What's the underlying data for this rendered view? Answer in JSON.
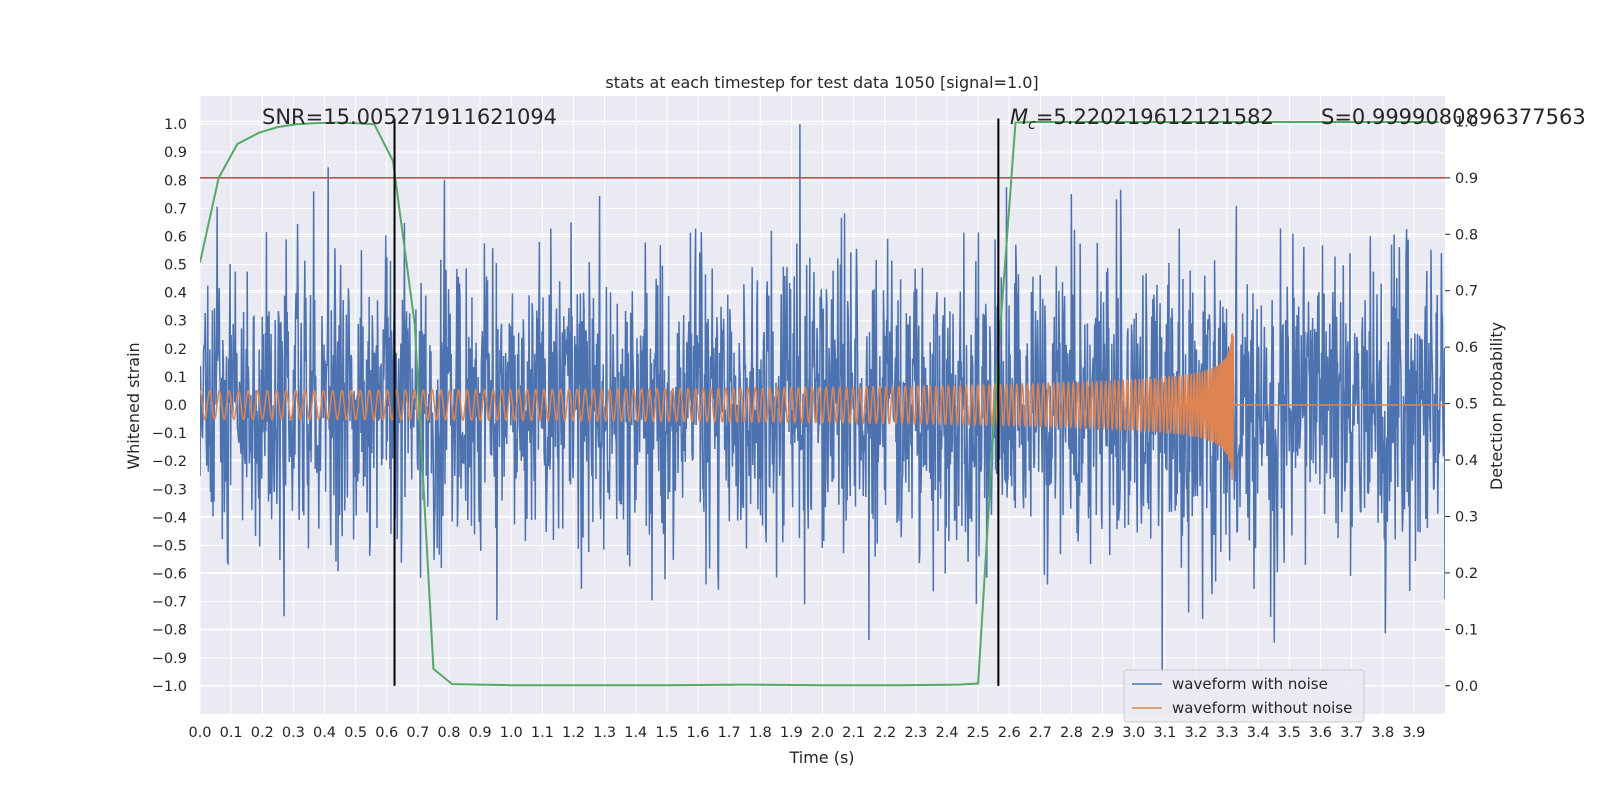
{
  "chart_data": {
    "type": "line",
    "title": "stats at each timestep for test data 1050 [signal=1.0]",
    "xlabel": "Time (s)",
    "ylabel": "Whitened strain",
    "y2label": "Detection probability",
    "xlim": [
      0.0,
      4.0
    ],
    "ylim": [
      -1.1,
      1.1
    ],
    "y2lim": [
      -0.05,
      1.045
    ],
    "xticks": [
      "0.0",
      "0.1",
      "0.2",
      "0.3",
      "0.4",
      "0.5",
      "0.6",
      "0.7",
      "0.8",
      "0.9",
      "1.0",
      "1.1",
      "1.2",
      "1.3",
      "1.4",
      "1.5",
      "1.6",
      "1.7",
      "1.8",
      "1.9",
      "2.0",
      "2.1",
      "2.2",
      "2.3",
      "2.4",
      "2.5",
      "2.6",
      "2.7",
      "2.8",
      "2.9",
      "3.0",
      "3.1",
      "3.2",
      "3.3",
      "3.4",
      "3.5",
      "3.6",
      "3.7",
      "3.8",
      "3.9"
    ],
    "yticks": [
      "1.0",
      "0.9",
      "0.8",
      "0.7",
      "0.6",
      "0.5",
      "0.4",
      "0.3",
      "0.2",
      "0.1",
      "0.0",
      "−0.1",
      "−0.2",
      "−0.3",
      "−0.4",
      "−0.5",
      "−0.6",
      "−0.7",
      "−0.8",
      "−0.9",
      "−1.0"
    ],
    "y2ticks": [
      "1.0",
      "0.9",
      "0.8",
      "0.7",
      "0.6",
      "0.5",
      "0.4",
      "0.3",
      "0.2",
      "0.1",
      "0.0"
    ],
    "annotations": {
      "snr": "SNR=15.005271911621094",
      "mc_symbol": "M",
      "mc_sub": "c",
      "mc_value": "=5.220219612121582",
      "s": "S=0.9999080896377563"
    },
    "vertical_markers_s": [
      0.625,
      2.565
    ],
    "threshold": {
      "axis": "y2",
      "value": 0.9,
      "color": "#c44e52"
    },
    "series": [
      {
        "name": "waveform with noise",
        "axis": "y",
        "color": "#4c72b0",
        "style": "noise",
        "amplitude_std": 0.27,
        "range": [
          -1.0,
          1.0
        ]
      },
      {
        "name": "waveform without noise",
        "axis": "y",
        "color": "#dd8452",
        "style": "chirp",
        "t_start": 0.0,
        "t_merge": 3.32,
        "freq_start_hz": 32,
        "amp_start": 0.05,
        "amp_peak": 0.35
      },
      {
        "name": "detection probability",
        "axis": "y2",
        "color": "#55a868",
        "x": [
          0.0,
          0.06,
          0.12,
          0.19,
          0.25,
          0.31,
          0.37,
          0.44,
          0.5,
          0.56,
          0.62,
          0.69,
          0.75,
          0.81,
          1.0,
          1.25,
          1.5,
          1.75,
          2.0,
          2.25,
          2.44,
          2.5,
          2.56,
          2.62,
          2.69,
          2.75,
          3.0,
          3.25,
          3.5,
          3.75,
          3.98
        ],
        "values": [
          0.75,
          0.9,
          0.96,
          0.98,
          0.99,
          0.995,
          0.997,
          0.998,
          0.997,
          0.995,
          0.93,
          0.64,
          0.03,
          0.003,
          0.001,
          0.001,
          0.001,
          0.002,
          0.001,
          0.001,
          0.002,
          0.004,
          0.55,
          0.998,
          0.999,
          0.999,
          0.999,
          0.999,
          0.999,
          0.999,
          0.999
        ]
      }
    ],
    "legend": {
      "position": "lower-right",
      "entries": [
        {
          "label": "waveform with noise",
          "color": "#4c72b0"
        },
        {
          "label": "waveform without noise",
          "color": "#dd8452"
        }
      ]
    },
    "colors": {
      "background": "#eaeaf2",
      "grid": "#ffffff",
      "marker": "#000000"
    }
  }
}
